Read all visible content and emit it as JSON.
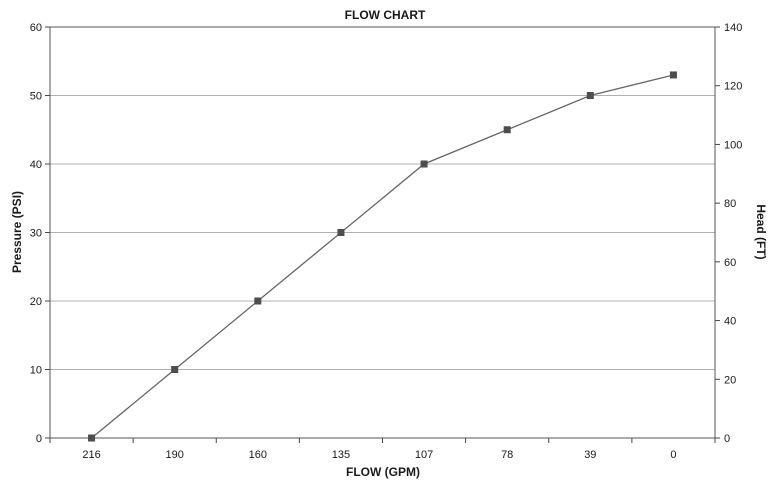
{
  "chart_data": {
    "type": "line",
    "title": "FLOW CHART",
    "xlabel": "FLOW (GPM)",
    "ylabel": "Pressure (PSI)",
    "y2label": "Head (FT)",
    "categories": [
      "216",
      "190",
      "160",
      "135",
      "107",
      "78",
      "39",
      "0"
    ],
    "series": [
      {
        "values": [
          0,
          10,
          20,
          30,
          40,
          45,
          50,
          53
        ]
      }
    ],
    "ylim": [
      0,
      60
    ],
    "yticks": [
      0,
      10,
      20,
      30,
      40,
      50,
      60
    ],
    "y2lim": [
      0,
      140
    ],
    "y2ticks": [
      0,
      20,
      40,
      60,
      80,
      100,
      120,
      140
    ],
    "grid": true,
    "legend": "none",
    "colors": {
      "line": "#666666",
      "marker": "#4d4d4d",
      "grid": "#b0b0b0"
    }
  }
}
